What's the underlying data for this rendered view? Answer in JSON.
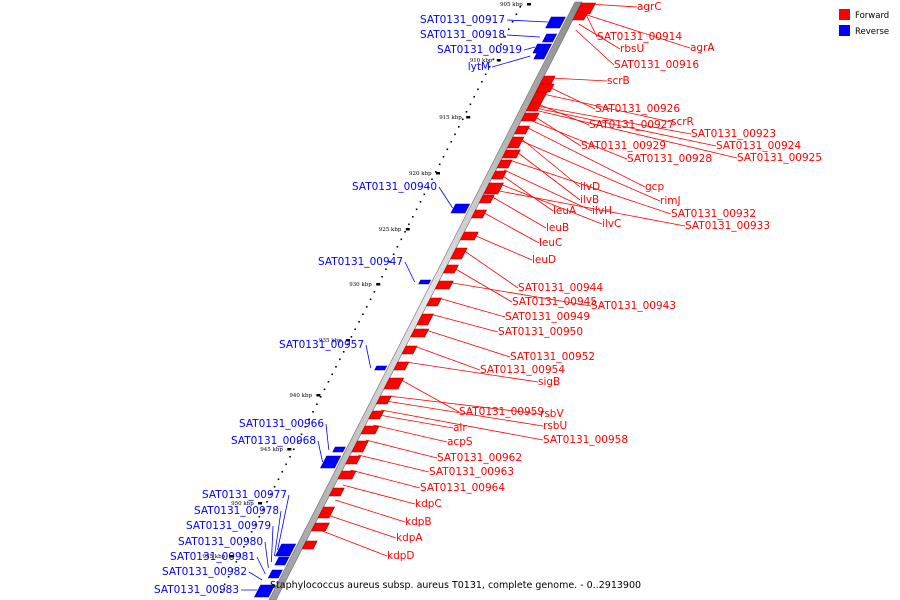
{
  "caption": "Staphylococcus aureus subsp. aureus T0131, complete genome. - 0..2913900",
  "legend": {
    "forward": {
      "label": "Forward",
      "color": "#ff0000"
    },
    "reverse": {
      "label": "Reverse",
      "color": "#0000ff"
    }
  },
  "ticks": [
    "905 kbp",
    "910 kbp",
    "915 kbp",
    "920 kbp",
    "925 kbp",
    "930 kbp",
    "935 kbp",
    "940 kbp",
    "945 kbp",
    "950 kbp",
    "955 kbp"
  ],
  "forward_genes": [
    "agrC",
    "SAT0131_00914",
    "agrA",
    "rbsU",
    "SAT0131_00916",
    "scrB",
    "SAT0131_00926",
    "scrR",
    "SAT0131_00927",
    "SAT0131_00923",
    "SAT0131_00924",
    "SAT0131_00925",
    "SAT0131_00929",
    "SAT0131_00928",
    "gcp",
    "ilvD",
    "rimJ",
    "ilvB",
    "SAT0131_00932",
    "ilvH",
    "leuA",
    "ilvC",
    "SAT0131_00933",
    "leuB",
    "leuC",
    "leuD",
    "SAT0131_00944",
    "SAT0131_00945",
    "SAT0131_00943",
    "SAT0131_00949",
    "SAT0131_00950",
    "SAT0131_00952",
    "SAT0131_00954",
    "sigB",
    "SAT0131_00959",
    "rsbV",
    "rsbU",
    "SAT0131_00958",
    "alr",
    "acpS",
    "SAT0131_00962",
    "SAT0131_00963",
    "SAT0131_00964",
    "kdpC",
    "kdpB",
    "kdpA",
    "kdpD"
  ],
  "reverse_genes": [
    "SAT0131_00917",
    "SAT0131_00918",
    "SAT0131_00919",
    "lytM",
    "SAT0131_00940",
    "SAT0131_00947",
    "SAT0131_00957",
    "SAT0131_00966",
    "SAT0131_00968",
    "SAT0131_00977",
    "SAT0131_00978",
    "SAT0131_00979",
    "SAT0131_00980",
    "SAT0131_00981",
    "SAT0131_00982",
    "SAT0131_00983"
  ]
}
